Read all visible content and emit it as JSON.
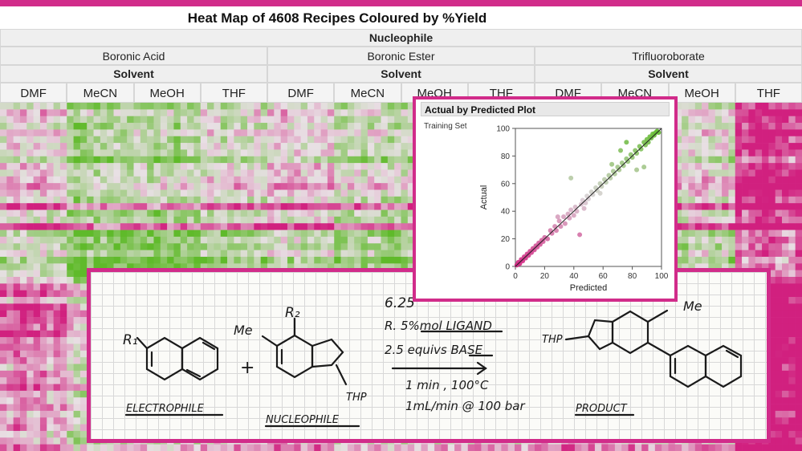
{
  "heatmap": {
    "title": "Heat Map of 4608 Recipes Coloured by %Yield",
    "nucleophile_label": "Nucleophile",
    "groups": [
      {
        "name": "Boronic Acid",
        "solvent_label": "Solvent",
        "solvents": [
          "DMF",
          "MeCN",
          "MeOH",
          "THF"
        ]
      },
      {
        "name": "Boronic Ester",
        "solvent_label": "Solvent",
        "solvents": [
          "DMF",
          "MeCN",
          "MeOH",
          "THF"
        ]
      },
      {
        "name": "Trifluoroborate",
        "solvent_label": "Solvent",
        "solvents": [
          "DMF",
          "MeCN",
          "MeOH",
          "THF"
        ]
      }
    ],
    "colors": {
      "low": "#d1207f",
      "mid": "#e8e0e4",
      "high": "#5fba2a",
      "accent": "#d12c8a"
    }
  },
  "chart_data": {
    "type": "scatter",
    "title": "Actual by Predicted Plot",
    "legend": "Training Set",
    "xlabel": "Predicted",
    "ylabel": "Actual",
    "xlim": [
      0,
      100
    ],
    "ylim": [
      0,
      100
    ],
    "xticks": [
      "0",
      "20",
      "40",
      "60",
      "80",
      "100"
    ],
    "yticks": [
      "0",
      "20",
      "40",
      "60",
      "80",
      "100"
    ],
    "fit_line": {
      "x": [
        0,
        100
      ],
      "y": [
        0,
        100
      ]
    },
    "points": [
      {
        "x": 1,
        "y": 1
      },
      {
        "x": 2,
        "y": 3
      },
      {
        "x": 3,
        "y": 2
      },
      {
        "x": 4,
        "y": 5
      },
      {
        "x": 5,
        "y": 4
      },
      {
        "x": 6,
        "y": 7
      },
      {
        "x": 7,
        "y": 6
      },
      {
        "x": 8,
        "y": 9
      },
      {
        "x": 9,
        "y": 8
      },
      {
        "x": 10,
        "y": 11
      },
      {
        "x": 11,
        "y": 10
      },
      {
        "x": 12,
        "y": 13
      },
      {
        "x": 13,
        "y": 12
      },
      {
        "x": 14,
        "y": 15
      },
      {
        "x": 15,
        "y": 14
      },
      {
        "x": 16,
        "y": 17
      },
      {
        "x": 17,
        "y": 16
      },
      {
        "x": 18,
        "y": 19
      },
      {
        "x": 19,
        "y": 18
      },
      {
        "x": 20,
        "y": 21
      },
      {
        "x": 22,
        "y": 20
      },
      {
        "x": 24,
        "y": 26
      },
      {
        "x": 25,
        "y": 24
      },
      {
        "x": 27,
        "y": 29
      },
      {
        "x": 28,
        "y": 26
      },
      {
        "x": 30,
        "y": 33
      },
      {
        "x": 31,
        "y": 29
      },
      {
        "x": 33,
        "y": 36
      },
      {
        "x": 34,
        "y": 31
      },
      {
        "x": 36,
        "y": 38
      },
      {
        "x": 37,
        "y": 35
      },
      {
        "x": 38,
        "y": 41
      },
      {
        "x": 40,
        "y": 37
      },
      {
        "x": 41,
        "y": 43
      },
      {
        "x": 42,
        "y": 40
      },
      {
        "x": 44,
        "y": 23
      },
      {
        "x": 45,
        "y": 45
      },
      {
        "x": 46,
        "y": 48
      },
      {
        "x": 48,
        "y": 46
      },
      {
        "x": 49,
        "y": 51
      },
      {
        "x": 50,
        "y": 49
      },
      {
        "x": 52,
        "y": 54
      },
      {
        "x": 53,
        "y": 52
      },
      {
        "x": 55,
        "y": 57
      },
      {
        "x": 56,
        "y": 55
      },
      {
        "x": 58,
        "y": 60
      },
      {
        "x": 59,
        "y": 58
      },
      {
        "x": 61,
        "y": 63
      },
      {
        "x": 62,
        "y": 61
      },
      {
        "x": 38,
        "y": 64
      },
      {
        "x": 64,
        "y": 66
      },
      {
        "x": 65,
        "y": 64
      },
      {
        "x": 67,
        "y": 69
      },
      {
        "x": 68,
        "y": 67
      },
      {
        "x": 70,
        "y": 72
      },
      {
        "x": 71,
        "y": 70
      },
      {
        "x": 73,
        "y": 75
      },
      {
        "x": 74,
        "y": 73
      },
      {
        "x": 76,
        "y": 78
      },
      {
        "x": 77,
        "y": 76
      },
      {
        "x": 79,
        "y": 81
      },
      {
        "x": 80,
        "y": 79
      },
      {
        "x": 82,
        "y": 84
      },
      {
        "x": 83,
        "y": 82
      },
      {
        "x": 85,
        "y": 87
      },
      {
        "x": 86,
        "y": 85
      },
      {
        "x": 88,
        "y": 90
      },
      {
        "x": 89,
        "y": 88
      },
      {
        "x": 90,
        "y": 92
      },
      {
        "x": 91,
        "y": 90
      },
      {
        "x": 92,
        "y": 94
      },
      {
        "x": 93,
        "y": 93
      },
      {
        "x": 94,
        "y": 96
      },
      {
        "x": 95,
        "y": 95
      },
      {
        "x": 96,
        "y": 97
      },
      {
        "x": 97,
        "y": 98
      },
      {
        "x": 98,
        "y": 97
      },
      {
        "x": 88,
        "y": 72
      },
      {
        "x": 76,
        "y": 90
      },
      {
        "x": 72,
        "y": 84
      },
      {
        "x": 66,
        "y": 74
      },
      {
        "x": 83,
        "y": 70
      },
      {
        "x": 58,
        "y": 53
      },
      {
        "x": 47,
        "y": 42
      },
      {
        "x": 29,
        "y": 36
      }
    ]
  },
  "notebook": {
    "r1": "R₁",
    "r2": "R₂",
    "me_left": "Me",
    "me_right": "Me",
    "thp_left": "THP",
    "thp_right": "THP",
    "plus": "+",
    "line1": "6.25",
    "line2": "R. 5%mol LIGAND",
    "line3": "2.5 equivs BASE",
    "line4": "1 min , 100°C",
    "line5": "1mL/min @ 100 bar",
    "electrophile": "ELECTROPHILE",
    "nucleophile": "NUCLEOPHILE",
    "product": "PRODUCT"
  }
}
